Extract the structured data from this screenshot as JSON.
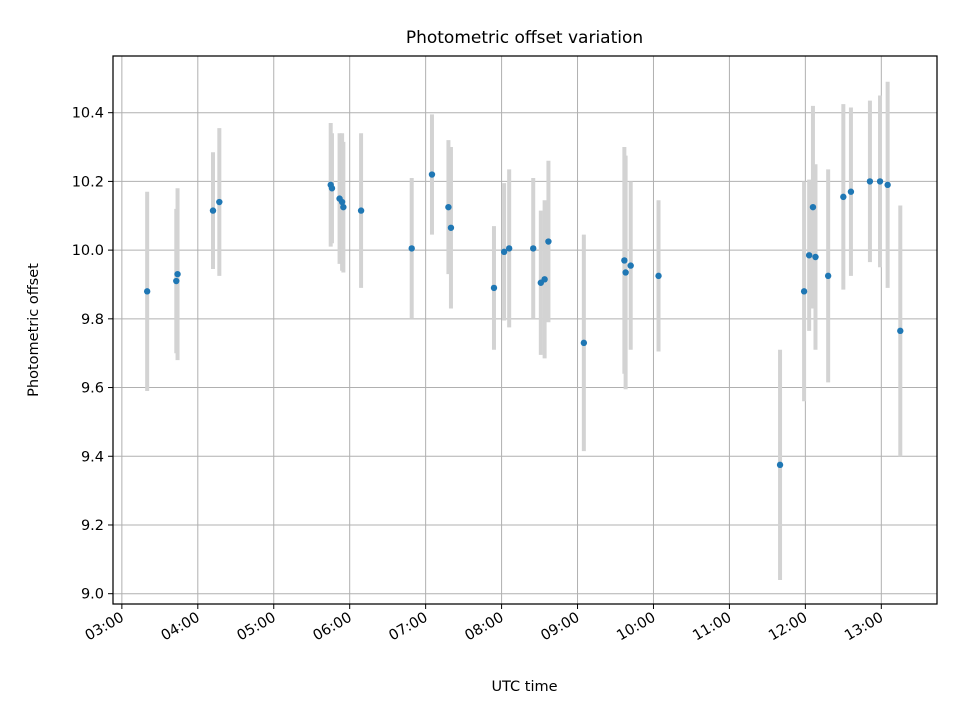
{
  "chart_data": {
    "type": "scatter",
    "title": "Photometric offset variation",
    "xlabel": "UTC time",
    "ylabel": "Photometric offset",
    "ylim": [
      8.97,
      10.565
    ],
    "xlim": [
      "02:53",
      "13:44"
    ],
    "x_ticks": [
      "03:00",
      "04:00",
      "05:00",
      "06:00",
      "07:00",
      "08:00",
      "09:00",
      "10:00",
      "11:00",
      "12:00",
      "13:00"
    ],
    "y_ticks": [
      "9.0",
      "9.2",
      "9.4",
      "9.6",
      "9.8",
      "10.0",
      "10.2",
      "10.4"
    ],
    "grid": true,
    "colors": {
      "points": "#1f77b4",
      "error_bars": "#d3d3d3",
      "grid": "#b0b0b0"
    },
    "points": [
      {
        "time": "03:20",
        "y": 9.88,
        "err": 0.29
      },
      {
        "time": "03:43",
        "y": 9.91,
        "err": 0.21
      },
      {
        "time": "03:44",
        "y": 9.93,
        "err": 0.25
      },
      {
        "time": "04:12",
        "y": 10.115,
        "err": 0.17
      },
      {
        "time": "04:17",
        "y": 10.14,
        "err": 0.215
      },
      {
        "time": "05:45",
        "y": 10.19,
        "err": 0.18
      },
      {
        "time": "05:46",
        "y": 10.18,
        "err": 0.16
      },
      {
        "time": "05:52",
        "y": 10.15,
        "err": 0.19
      },
      {
        "time": "05:54",
        "y": 10.14,
        "err": 0.2
      },
      {
        "time": "05:55",
        "y": 10.125,
        "err": 0.19
      },
      {
        "time": "06:09",
        "y": 10.115,
        "err": 0.225
      },
      {
        "time": "06:49",
        "y": 10.005,
        "err": 0.205
      },
      {
        "time": "07:05",
        "y": 10.22,
        "err": 0.175
      },
      {
        "time": "07:18",
        "y": 10.125,
        "err": 0.195
      },
      {
        "time": "07:20",
        "y": 10.065,
        "err": 0.235
      },
      {
        "time": "07:54",
        "y": 9.89,
        "err": 0.18
      },
      {
        "time": "08:02",
        "y": 9.995,
        "err": 0.2
      },
      {
        "time": "08:06",
        "y": 10.005,
        "err": 0.23
      },
      {
        "time": "08:25",
        "y": 10.005,
        "err": 0.205
      },
      {
        "time": "08:31",
        "y": 9.905,
        "err": 0.21
      },
      {
        "time": "08:34",
        "y": 9.915,
        "err": 0.23
      },
      {
        "time": "08:37",
        "y": 10.025,
        "err": 0.235
      },
      {
        "time": "09:05",
        "y": 9.73,
        "err": 0.315
      },
      {
        "time": "09:37",
        "y": 9.97,
        "err": 0.33
      },
      {
        "time": "09:38",
        "y": 9.935,
        "err": 0.34
      },
      {
        "time": "09:42",
        "y": 9.955,
        "err": 0.245
      },
      {
        "time": "10:04",
        "y": 9.925,
        "err": 0.22
      },
      {
        "time": "11:40",
        "y": 9.375,
        "err": 0.335
      },
      {
        "time": "11:59",
        "y": 9.88,
        "err": 0.32
      },
      {
        "time": "12:03",
        "y": 9.985,
        "err": 0.22
      },
      {
        "time": "12:06",
        "y": 10.125,
        "err": 0.295
      },
      {
        "time": "12:08",
        "y": 9.98,
        "err": 0.27
      },
      {
        "time": "12:18",
        "y": 9.925,
        "err": 0.31
      },
      {
        "time": "12:30",
        "y": 10.155,
        "err": 0.27
      },
      {
        "time": "12:36",
        "y": 10.17,
        "err": 0.245
      },
      {
        "time": "12:51",
        "y": 10.2,
        "err": 0.235
      },
      {
        "time": "12:59",
        "y": 10.2,
        "err": 0.25
      },
      {
        "time": "13:05",
        "y": 10.19,
        "err": 0.3
      },
      {
        "time": "13:15",
        "y": 9.765,
        "err": 0.365
      }
    ]
  }
}
